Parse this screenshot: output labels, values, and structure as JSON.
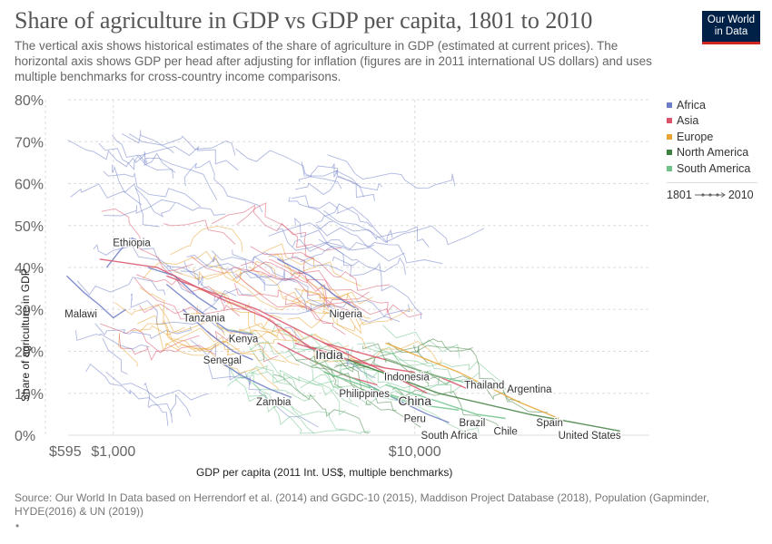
{
  "header": {
    "title": "Share of agriculture in GDP vs GDP per capita, 1801 to 2010",
    "subtitle": "The vertical axis shows historical estimates of the share of agriculture in GDP (estimated at current prices). The horizontal axis shows GDP per head after adjusting for inflation (figures are in 2011 international US dollars) and uses multiple benchmarks for cross-country income comparisons.",
    "logo_line1": "Our World",
    "logo_line2": "in Data"
  },
  "legend": {
    "items": [
      {
        "label": "Africa",
        "color": "#6d7dc6"
      },
      {
        "label": "Asia",
        "color": "#d9536a"
      },
      {
        "label": "Europe",
        "color": "#e8a332"
      },
      {
        "label": "North America",
        "color": "#3f7f3f"
      },
      {
        "label": "South America",
        "color": "#6fc38a"
      }
    ],
    "time_start": "1801",
    "time_end": "2010"
  },
  "axes": {
    "ylabel": "Share of agriculture in GDP",
    "xlabel": "GDP per capita (2011 Int. US$, multiple benchmarks)",
    "y_ticks": [
      "0%",
      "10%",
      "20%",
      "30%",
      "40%",
      "50%",
      "60%",
      "70%",
      "80%"
    ],
    "x_ticks": [
      "$595",
      "$1,000",
      "$10,000"
    ]
  },
  "footer": {
    "source": "Source: Our World In Data based on Herrendorf et al. (2014) and GGDC-10 (2015), Maddison Project Database (2018), Population (Gapminder, HYDE(2016) & UN (2019))",
    "bullet": "•"
  },
  "chart_data": {
    "type": "line",
    "title": "Share of agriculture in GDP vs GDP per capita, 1801 to 2010",
    "xlabel": "GDP per capita (2011 Int. US$, multiple benchmarks)",
    "ylabel": "Share of agriculture in GDP",
    "x_scale": "log",
    "xlim": [
      595,
      60000
    ],
    "ylim": [
      0,
      80
    ],
    "y_unit": "%",
    "grid": true,
    "legend_position": "right",
    "x_ticks": [
      595,
      1000,
      10000
    ],
    "y_ticks": [
      0,
      10,
      20,
      30,
      40,
      50,
      60,
      70,
      80
    ],
    "series": [
      {
        "name": "Ethiopia",
        "region": "Africa",
        "points": [
          [
            950,
            40
          ],
          [
            1050,
            44
          ],
          [
            1150,
            47
          ],
          [
            1250,
            46
          ]
        ],
        "label_at": [
          1150,
          46
        ]
      },
      {
        "name": "Malawi",
        "region": "Africa",
        "points": [
          [
            700,
            38
          ],
          [
            800,
            34
          ],
          [
            900,
            31
          ],
          [
            1000,
            28
          ],
          [
            1100,
            30
          ]
        ],
        "label_at": [
          780,
          29
        ]
      },
      {
        "name": "Tanzania",
        "region": "Africa",
        "points": [
          [
            1300,
            40
          ],
          [
            1600,
            38
          ],
          [
            1900,
            33
          ],
          [
            2200,
            30
          ]
        ],
        "label_at": [
          2000,
          28
        ]
      },
      {
        "name": "Kenya",
        "region": "Africa",
        "points": [
          [
            1500,
            36
          ],
          [
            1900,
            30
          ],
          [
            2400,
            25
          ],
          [
            2900,
            24
          ]
        ],
        "label_at": [
          2700,
          23
        ]
      },
      {
        "name": "Senegal",
        "region": "Africa",
        "points": [
          [
            1700,
            30
          ],
          [
            2100,
            24
          ],
          [
            2500,
            20
          ],
          [
            2900,
            18
          ]
        ],
        "label_at": [
          2300,
          18
        ]
      },
      {
        "name": "Zambia",
        "region": "Africa",
        "points": [
          [
            2200,
            18
          ],
          [
            2700,
            14
          ],
          [
            3300,
            11
          ],
          [
            3900,
            9
          ]
        ],
        "label_at": [
          3400,
          8
        ]
      },
      {
        "name": "Nigeria",
        "region": "Africa",
        "points": [
          [
            3500,
            42
          ],
          [
            4500,
            38
          ],
          [
            5500,
            33
          ],
          [
            6500,
            30
          ]
        ],
        "label_at": [
          5900,
          29
        ]
      },
      {
        "name": "South Africa",
        "region": "Africa",
        "points": [
          [
            7000,
            12
          ],
          [
            9000,
            8
          ],
          [
            11000,
            5
          ],
          [
            13000,
            3
          ]
        ],
        "label_at": [
          13000,
          0
        ]
      },
      {
        "name": "India",
        "region": "Asia",
        "points": [
          [
            900,
            42
          ],
          [
            1400,
            40
          ],
          [
            2200,
            33
          ],
          [
            3200,
            28
          ],
          [
            4500,
            21
          ],
          [
            5500,
            19
          ]
        ],
        "label_at": [
          5200,
          19
        ]
      },
      {
        "name": "Indonesia",
        "region": "Asia",
        "points": [
          [
            4000,
            22
          ],
          [
            6000,
            18
          ],
          [
            8000,
            16
          ],
          [
            10000,
            15
          ]
        ],
        "label_at": [
          9400,
          14
        ]
      },
      {
        "name": "Philippines",
        "region": "Asia",
        "points": [
          [
            3500,
            22
          ],
          [
            4500,
            18
          ],
          [
            6000,
            14
          ],
          [
            7500,
            12
          ]
        ],
        "label_at": [
          6800,
          10
        ]
      },
      {
        "name": "China",
        "region": "Asia",
        "points": [
          [
            1500,
            38
          ],
          [
            3000,
            30
          ],
          [
            5000,
            22
          ],
          [
            8000,
            15
          ],
          [
            11000,
            10
          ]
        ],
        "label_at": [
          10000,
          8
        ]
      },
      {
        "name": "Thailand",
        "region": "Asia",
        "points": [
          [
            5000,
            22
          ],
          [
            8000,
            18
          ],
          [
            12000,
            14
          ],
          [
            15000,
            11
          ]
        ],
        "label_at": [
          17000,
          12
        ]
      },
      {
        "name": "Spain",
        "region": "Europe",
        "points": [
          [
            8000,
            22
          ],
          [
            14000,
            15
          ],
          [
            22000,
            8
          ],
          [
            30000,
            4
          ]
        ],
        "label_at": [
          28000,
          3
        ]
      },
      {
        "name": "United States",
        "region": "North America",
        "points": [
          [
            6000,
            18
          ],
          [
            12000,
            10
          ],
          [
            24000,
            5
          ],
          [
            48000,
            1
          ]
        ],
        "label_at": [
          38000,
          0
        ]
      },
      {
        "name": "Argentina",
        "region": "South America",
        "points": [
          [
            8000,
            18
          ],
          [
            12000,
            14
          ],
          [
            16000,
            12
          ],
          [
            20000,
            11
          ]
        ],
        "label_at": [
          24000,
          11
        ]
      },
      {
        "name": "Peru",
        "region": "South America",
        "points": [
          [
            4500,
            18
          ],
          [
            6500,
            13
          ],
          [
            8500,
            9
          ],
          [
            10500,
            7
          ]
        ],
        "label_at": [
          10000,
          4
        ]
      },
      {
        "name": "Brazil",
        "region": "South America",
        "points": [
          [
            5000,
            15
          ],
          [
            8000,
            10
          ],
          [
            11000,
            7
          ],
          [
            14000,
            6
          ]
        ],
        "label_at": [
          15500,
          3
        ]
      },
      {
        "name": "Chile",
        "region": "South America",
        "points": [
          [
            8000,
            12
          ],
          [
            12000,
            8
          ],
          [
            16000,
            5
          ],
          [
            20000,
            4
          ]
        ],
        "label_at": [
          20000,
          1
        ]
      }
    ]
  }
}
